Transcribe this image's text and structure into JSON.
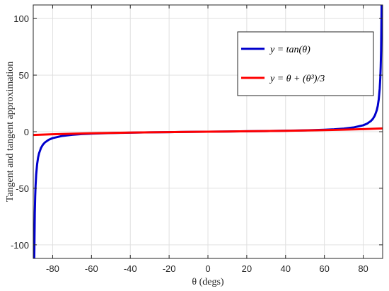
{
  "chart_data": {
    "type": "line",
    "title": "",
    "xlabel": "θ (degs)",
    "ylabel": "Tangent and tangent approximation",
    "xlim": [
      -90,
      90
    ],
    "ylim": [
      -112,
      112
    ],
    "xticks": [
      -80,
      -60,
      -40,
      -20,
      0,
      20,
      40,
      60,
      80
    ],
    "xtick_labels": [
      "-80",
      "-60",
      "-40",
      "-20",
      "0",
      "20",
      "40",
      "60",
      "80"
    ],
    "yticks": [
      -100,
      -50,
      0,
      50,
      100
    ],
    "ytick_labels": [
      "-100",
      "-50",
      "0",
      "50",
      "100"
    ],
    "grid": true,
    "legend_position": "upper-right",
    "series": [
      {
        "name": "y = tan(θ)",
        "color": "#0000cc",
        "x": [
          -89.5,
          -89.2,
          -89.0,
          -88.8,
          -88.5,
          -88.0,
          -87.5,
          -87.0,
          -86.0,
          -85.0,
          -84.0,
          -82.0,
          -80.0,
          -75.0,
          -70.0,
          -65.0,
          -60.0,
          -50.0,
          -40.0,
          -30.0,
          -20.0,
          -10.0,
          0.0,
          10.0,
          20.0,
          30.0,
          40.0,
          50.0,
          60.0,
          65.0,
          70.0,
          75.0,
          80.0,
          82.0,
          84.0,
          85.0,
          86.0,
          87.0,
          87.5,
          88.0,
          88.5,
          88.8,
          89.0,
          89.2,
          89.5
        ],
        "y": [
          -114.59,
          -71.62,
          -57.29,
          -47.74,
          -38.19,
          -28.64,
          -22.9,
          -19.08,
          -14.3,
          -11.43,
          -9.51,
          -7.12,
          -5.67,
          -3.73,
          -2.75,
          -2.14,
          -1.73,
          -1.19,
          -0.84,
          -0.58,
          -0.36,
          -0.18,
          0.0,
          0.18,
          0.36,
          0.58,
          0.84,
          1.19,
          1.73,
          2.14,
          2.75,
          3.73,
          5.67,
          7.12,
          9.51,
          11.43,
          14.3,
          19.08,
          22.9,
          28.64,
          38.19,
          47.74,
          57.29,
          71.62,
          114.59
        ]
      },
      {
        "name": "y = θ + (θ³)/3",
        "color": "#ff0000",
        "x": [
          -90,
          -80,
          -70,
          -60,
          -50,
          -40,
          -30,
          -20,
          -10,
          0,
          10,
          20,
          30,
          40,
          50,
          60,
          70,
          80,
          90
        ],
        "y": [
          -2.863,
          -2.279,
          -1.791,
          -1.39,
          -1.066,
          -0.806,
          -0.571,
          -0.367,
          -0.176,
          0.0,
          0.176,
          0.367,
          0.571,
          0.806,
          1.066,
          1.39,
          1.791,
          2.279,
          2.863
        ]
      }
    ]
  }
}
